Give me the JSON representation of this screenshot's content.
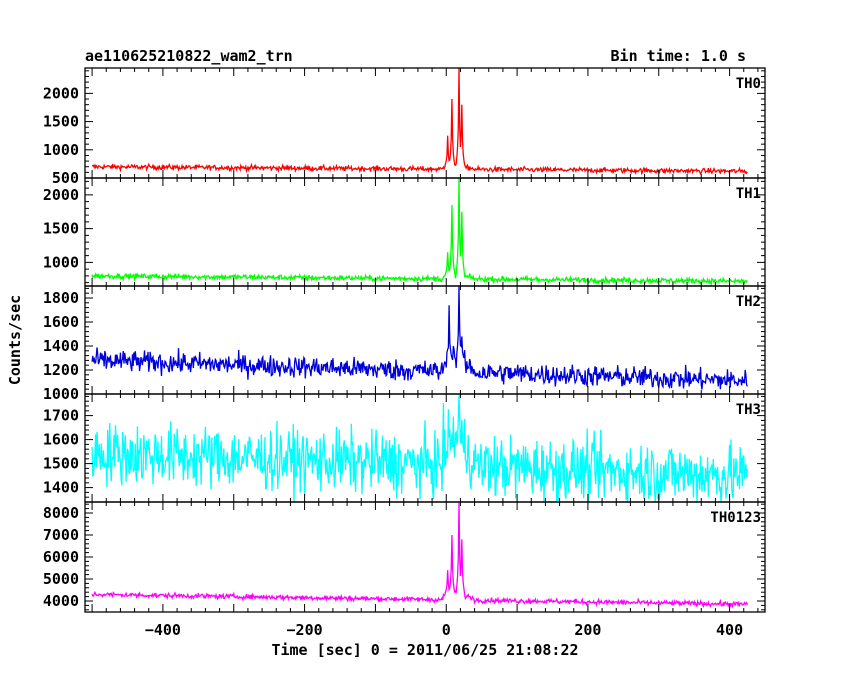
{
  "header": {
    "title": "ae110625210822_wam2_trn",
    "bin_time": "Bin time: 1.0 s"
  },
  "chart_data": {
    "type": "line",
    "xlabel": "Time [sec] 0 = 2011/06/25 21:08:22",
    "ylabel": "Counts/sec",
    "xlim": [
      -510,
      450
    ],
    "xticks": [
      -400,
      -200,
      0,
      200,
      400
    ],
    "xtick_labels": [
      "−400",
      "−200",
      "0",
      "200",
      "400"
    ],
    "x_range_data": [
      -500,
      425
    ],
    "bin_time_s": 1.0,
    "panels": [
      {
        "label": "TH0",
        "color": "#ff0000",
        "ylim": [
          500,
          2450
        ],
        "yticks": [
          500,
          1000,
          1500,
          2000
        ],
        "baseline_start": 700,
        "baseline_end": 620,
        "noise": 22,
        "peaks": [
          [
            2,
            1250
          ],
          [
            8,
            1900
          ],
          [
            18,
            2450
          ],
          [
            22,
            1800
          ]
        ]
      },
      {
        "label": "TH1",
        "color": "#00ff00",
        "ylim": [
          650,
          2250
        ],
        "yticks": [
          1000,
          1500,
          2000
        ],
        "baseline_start": 800,
        "baseline_end": 720,
        "noise": 20,
        "peaks": [
          [
            2,
            1150
          ],
          [
            8,
            1850
          ],
          [
            18,
            2250
          ],
          [
            22,
            1750
          ]
        ]
      },
      {
        "label": "TH2",
        "color": "#0000dd",
        "ylim": [
          1000,
          1900
        ],
        "yticks": [
          1000,
          1200,
          1400,
          1600,
          1800
        ],
        "baseline_start": 1280,
        "baseline_end": 1110,
        "noise": 45,
        "peaks": [
          [
            4,
            1740
          ],
          [
            10,
            1400
          ],
          [
            18,
            1900
          ],
          [
            22,
            1480
          ]
        ]
      },
      {
        "label": "TH3",
        "color": "#00ffff",
        "ylim": [
          1340,
          1790
        ],
        "yticks": [
          1400,
          1500,
          1600,
          1700
        ],
        "baseline_start": 1545,
        "baseline_end": 1450,
        "noise": 65,
        "peaks": [
          [
            18,
            1790
          ]
        ]
      },
      {
        "label": "TH0123",
        "color": "#ff00ff",
        "ylim": [
          3500,
          8500
        ],
        "yticks": [
          4000,
          5000,
          6000,
          7000,
          8000
        ],
        "baseline_start": 4300,
        "baseline_end": 3850,
        "noise": 55,
        "peaks": [
          [
            2,
            5400
          ],
          [
            8,
            7000
          ],
          [
            18,
            8500
          ],
          [
            22,
            6800
          ]
        ]
      }
    ]
  }
}
